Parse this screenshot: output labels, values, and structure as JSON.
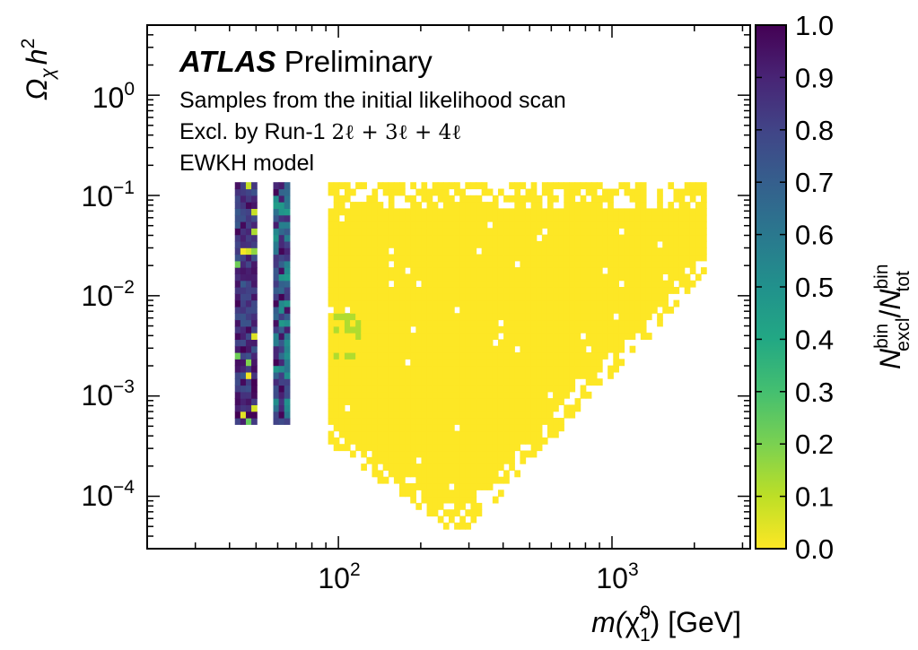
{
  "chart_data": {
    "type": "heatmap",
    "x_scale": "log",
    "y_scale": "log",
    "xlim": [
      20,
      3200
    ],
    "ylim": [
      3e-05,
      5
    ],
    "x_ticks": [
      {
        "value": 100,
        "base": "10",
        "exp": "2"
      },
      {
        "value": 1000,
        "base": "10",
        "exp": "3"
      }
    ],
    "y_ticks": [
      {
        "value": 1,
        "base": "10",
        "exp": "0"
      },
      {
        "value": 0.1,
        "base": "10",
        "exp": "−1"
      },
      {
        "value": 0.01,
        "base": "10",
        "exp": "−2"
      },
      {
        "value": 0.001,
        "base": "10",
        "exp": "−3"
      },
      {
        "value": 0.0001,
        "base": "10",
        "exp": "−4"
      }
    ],
    "xlabel": {
      "prefix": "m(",
      "symbol": "χ̃",
      "sup": "0",
      "sub": "1",
      "suffix": ") [GeV]"
    },
    "ylabel": {
      "omega": "Ω",
      "sub": "χ",
      "h": "h",
      "sup": "2"
    },
    "annotations": {
      "experiment": "ATLAS",
      "status": "Preliminary",
      "line1": "Samples from the initial likelihood scan",
      "line2_prefix": "Excl. by Run-1 ",
      "line2_formula": "2ℓ + 3ℓ + 4ℓ",
      "line3": "EWKH model"
    },
    "colorbar": {
      "min": 0,
      "max": 1,
      "ticks": [
        "0.0",
        "0.1",
        "0.2",
        "0.3",
        "0.4",
        "0.5",
        "0.6",
        "0.7",
        "0.8",
        "0.9",
        "1.0"
      ],
      "label": {
        "N": "N",
        "num_sup": "bin",
        "num_sub": "excl",
        "slash": "/",
        "N2": "N",
        "den_sup": "bin",
        "den_sub": "tot"
      },
      "colormap": "viridis_r"
    },
    "regions": [
      {
        "name": "stripe-low-mass",
        "x_range": [
          41,
          50
        ],
        "y_range": [
          0.0005,
          0.13
        ],
        "values": "mostly 0.7-1.0, some yellow bins"
      },
      {
        "name": "stripe-mid-mass",
        "x_range": [
          57,
          66
        ],
        "y_range": [
          0.0005,
          0.13
        ],
        "values": "mixed 0.5-1.0"
      },
      {
        "name": "bulk-region",
        "x_range": [
          90,
          2200
        ],
        "y_range": [
          5e-05,
          0.13
        ],
        "values": "0.0"
      }
    ]
  }
}
